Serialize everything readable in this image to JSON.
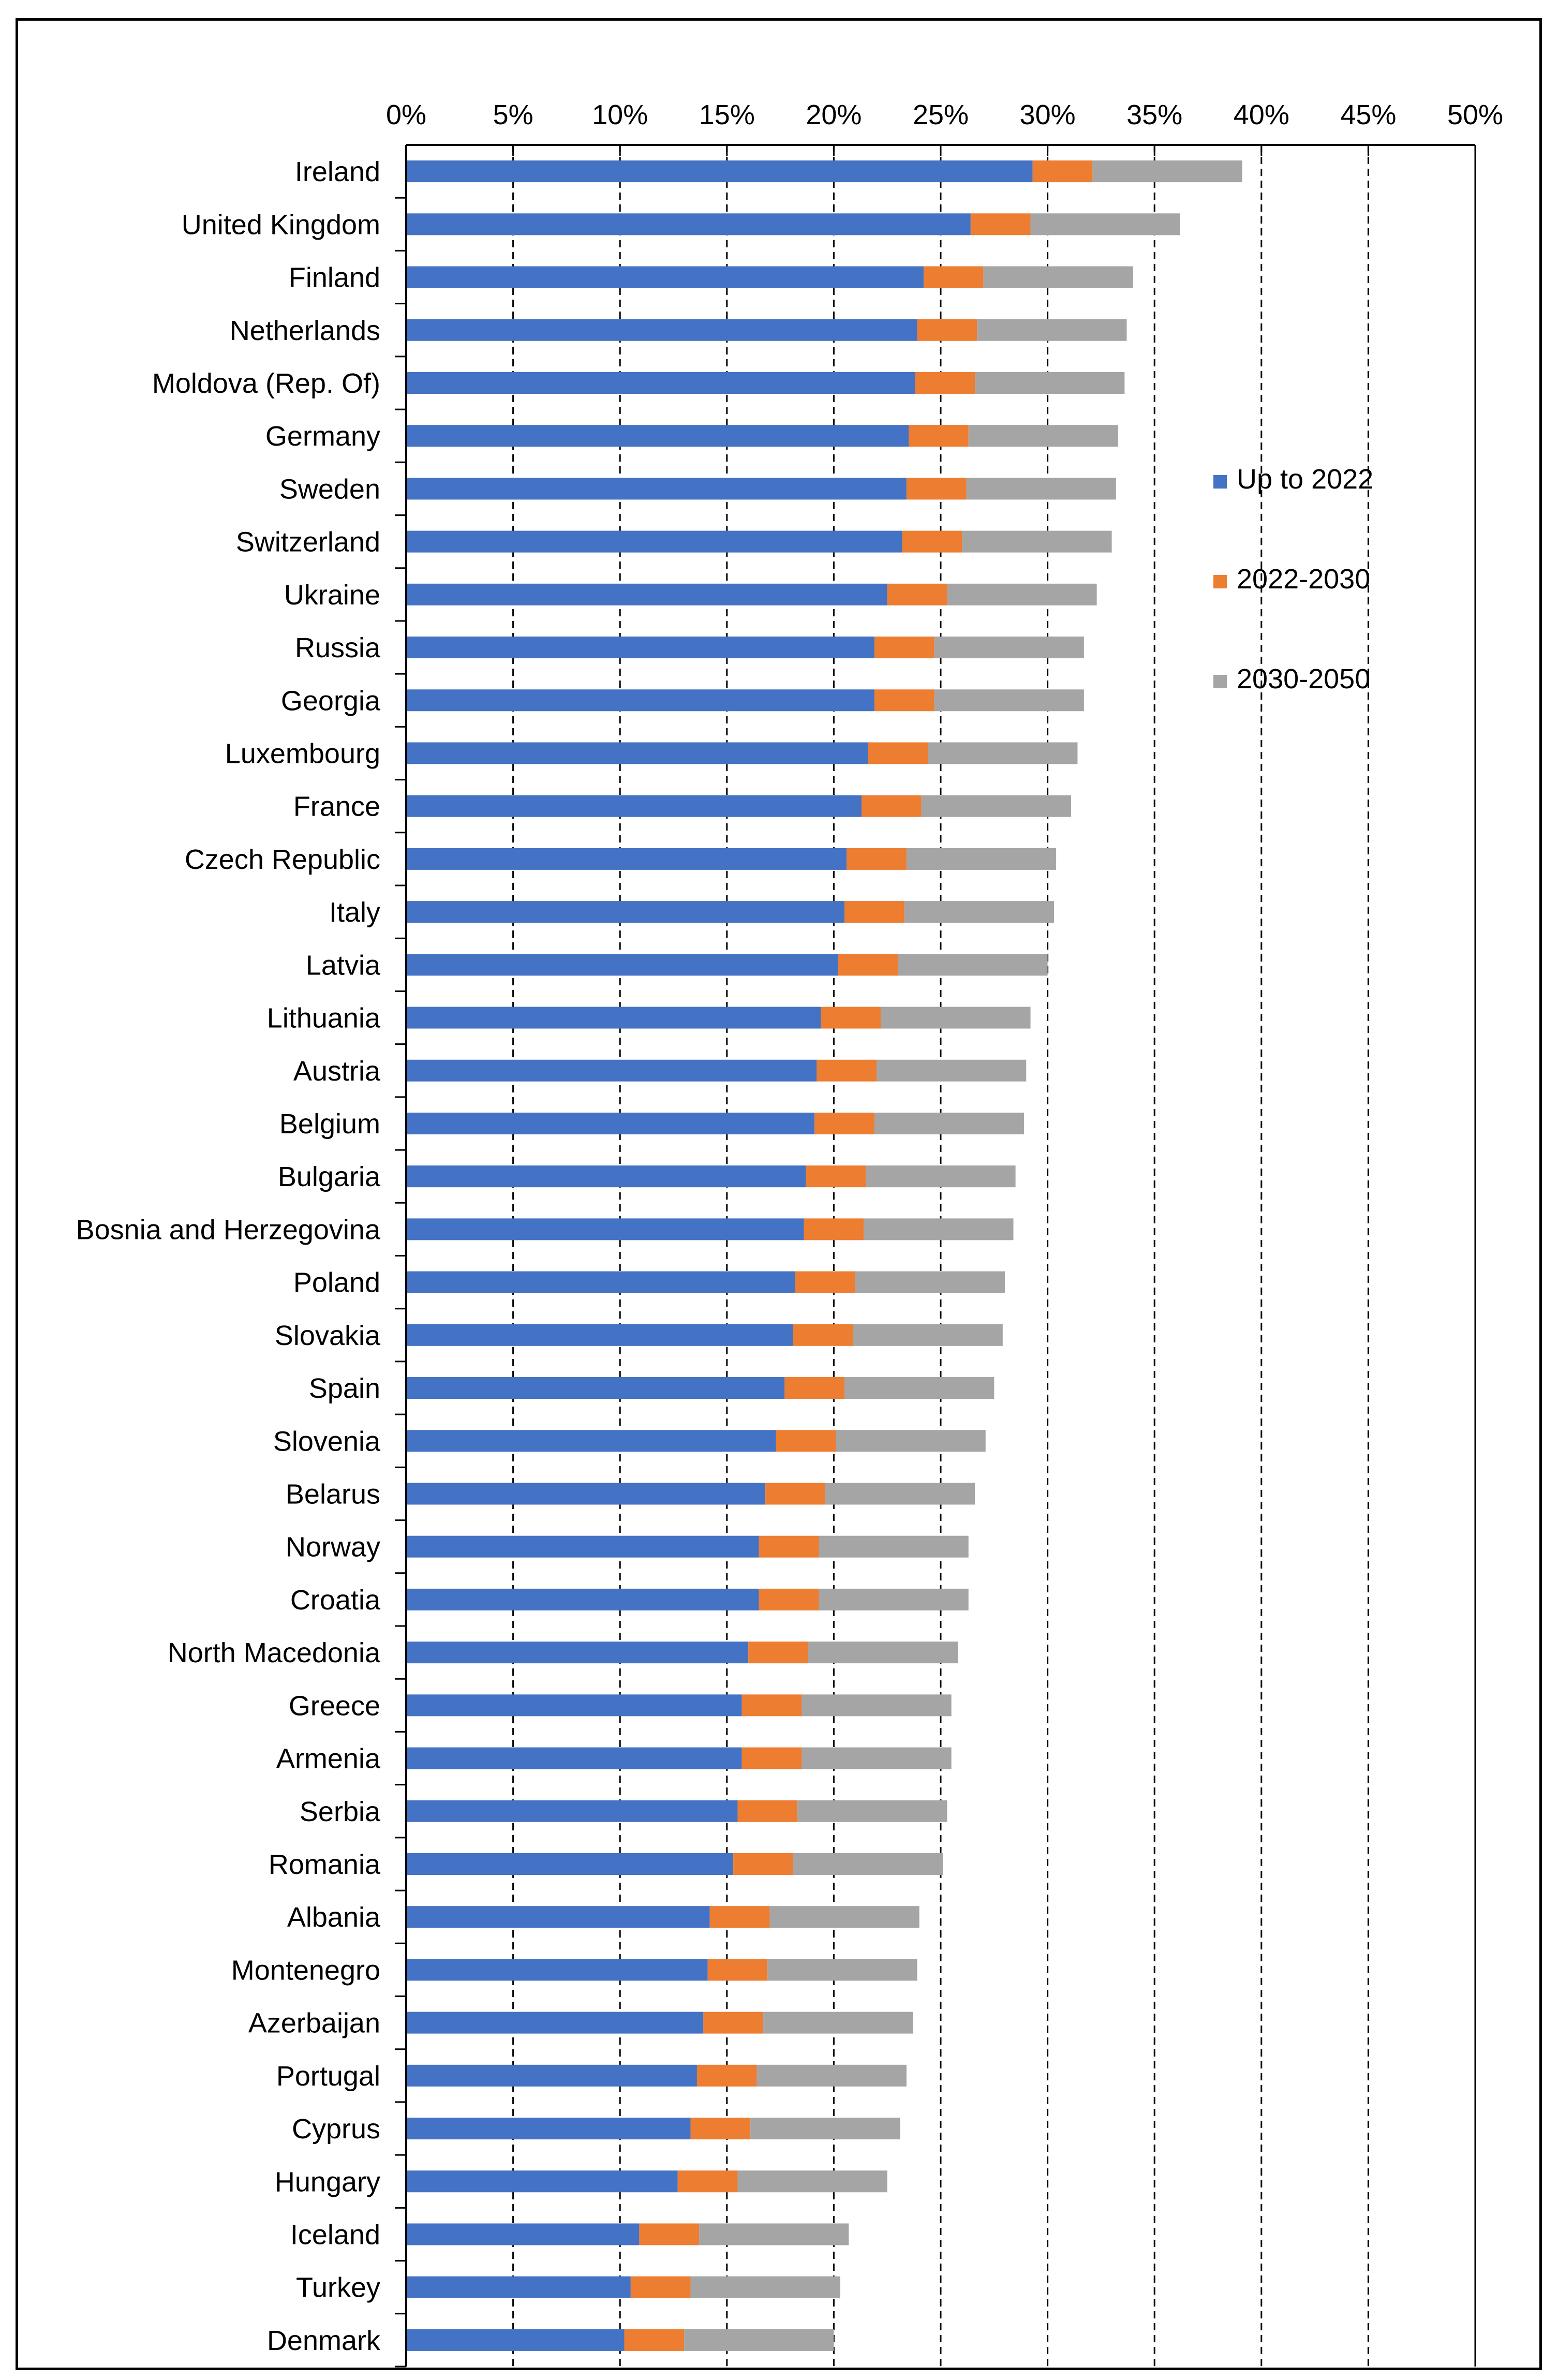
{
  "chart_data": {
    "type": "bar",
    "orientation": "horizontal",
    "stacked": true,
    "title": "",
    "xlabel": "",
    "ylabel": "",
    "xlim": [
      0,
      50
    ],
    "x_ticks": [
      "0%",
      "5%",
      "10%",
      "15%",
      "20%",
      "25%",
      "30%",
      "35%",
      "40%",
      "45%",
      "50%"
    ],
    "x_tick_values": [
      0,
      5,
      10,
      15,
      20,
      25,
      30,
      35,
      40,
      45,
      50
    ],
    "grid": "vertical dashed",
    "legend_position": "right",
    "categories": [
      "Ireland",
      "United Kingdom",
      "Finland",
      "Netherlands",
      "Moldova (Rep. Of)",
      "Germany",
      "Sweden",
      "Switzerland",
      "Ukraine",
      "Russia",
      "Georgia",
      "Luxembourg",
      "France",
      "Czech Republic",
      "Italy",
      "Latvia",
      "Lithuania",
      "Austria",
      "Belgium",
      "Bulgaria",
      "Bosnia and Herzegovina",
      "Poland",
      "Slovakia",
      "Spain",
      "Slovenia",
      "Belarus",
      "Norway",
      "Croatia",
      "North Macedonia",
      "Greece",
      "Armenia",
      "Serbia",
      "Romania",
      "Albania",
      "Montenegro",
      "Azerbaijan",
      "Portugal",
      "Cyprus",
      "Hungary",
      "Iceland",
      "Turkey",
      "Denmark"
    ],
    "series": [
      {
        "name": "Up to 2022",
        "color": "#4472C4",
        "values": [
          29.3,
          26.4,
          24.2,
          23.9,
          23.8,
          23.5,
          23.4,
          23.2,
          22.5,
          21.9,
          21.9,
          21.6,
          21.3,
          20.6,
          20.5,
          20.2,
          19.4,
          19.2,
          19.1,
          18.7,
          18.6,
          18.2,
          18.1,
          17.7,
          17.3,
          16.8,
          16.5,
          16.5,
          16.0,
          15.7,
          15.7,
          15.5,
          15.3,
          14.2,
          14.1,
          13.9,
          13.6,
          13.3,
          12.7,
          10.9,
          10.5,
          10.2
        ]
      },
      {
        "name": "2022-2030",
        "color": "#ED7D31",
        "values": [
          2.8,
          2.8,
          2.8,
          2.8,
          2.8,
          2.8,
          2.8,
          2.8,
          2.8,
          2.8,
          2.8,
          2.8,
          2.8,
          2.8,
          2.8,
          2.8,
          2.8,
          2.8,
          2.8,
          2.8,
          2.8,
          2.8,
          2.8,
          2.8,
          2.8,
          2.8,
          2.8,
          2.8,
          2.8,
          2.8,
          2.8,
          2.8,
          2.8,
          2.8,
          2.8,
          2.8,
          2.8,
          2.8,
          2.8,
          2.8,
          2.8,
          2.8
        ]
      },
      {
        "name": "2030-2050",
        "color": "#A5A5A5",
        "values": [
          7.0,
          7.0,
          7.0,
          7.0,
          7.0,
          7.0,
          7.0,
          7.0,
          7.0,
          7.0,
          7.0,
          7.0,
          7.0,
          7.0,
          7.0,
          7.0,
          7.0,
          7.0,
          7.0,
          7.0,
          7.0,
          7.0,
          7.0,
          7.0,
          7.0,
          7.0,
          7.0,
          7.0,
          7.0,
          7.0,
          7.0,
          7.0,
          7.0,
          7.0,
          7.0,
          7.0,
          7.0,
          7.0,
          7.0,
          7.0,
          7.0,
          7.0
        ]
      }
    ]
  }
}
